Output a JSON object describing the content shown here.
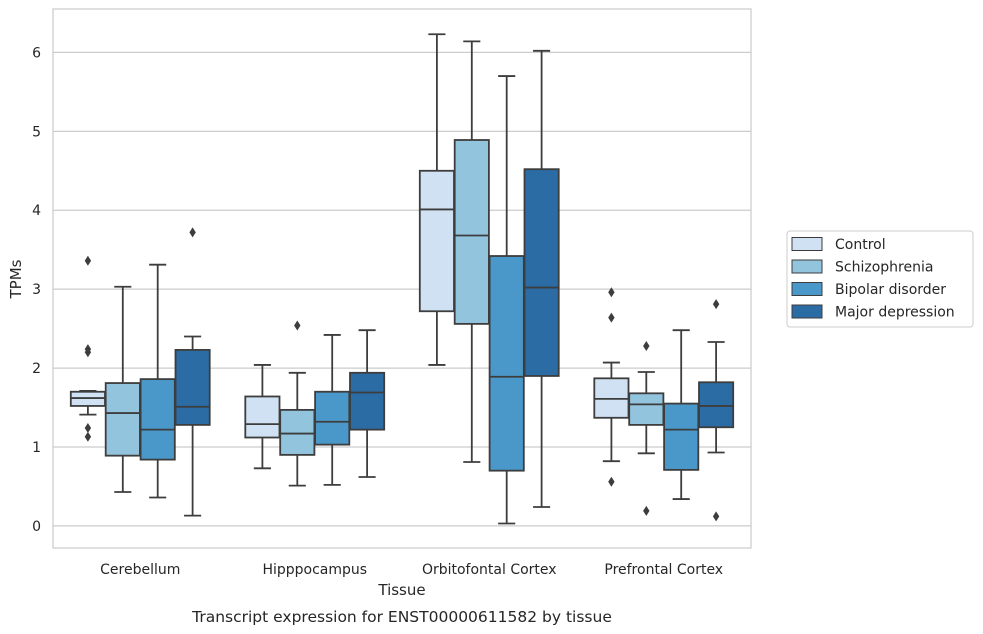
{
  "chart_data": {
    "type": "box",
    "title": "",
    "caption": "Transcript expression for ENST00000611582 by tissue",
    "xlabel": "Tissue",
    "ylabel": "TPMs",
    "ylim": [
      -0.28,
      6.55
    ],
    "yticks": [
      0,
      1,
      2,
      3,
      4,
      5,
      6
    ],
    "grid": "horizontal",
    "legend_position": "right",
    "categories": [
      "Cerebellum",
      "Hipppocampus",
      "Orbitofontal Cortex",
      "Prefrontal Cortex"
    ],
    "series": [
      {
        "name": "Control",
        "color": "#cfe1f2",
        "boxes": [
          {
            "whislo": 1.41,
            "q1": 1.52,
            "med": 1.62,
            "q3": 1.7,
            "whishi": 1.71,
            "fliers": [
              3.36,
              2.24,
              2.2,
              1.24,
              1.13
            ]
          },
          {
            "whislo": 0.73,
            "q1": 1.12,
            "med": 1.29,
            "q3": 1.64,
            "whishi": 2.04,
            "fliers": []
          },
          {
            "whislo": 2.04,
            "q1": 2.72,
            "med": 4.01,
            "q3": 4.5,
            "whishi": 6.23,
            "fliers": []
          },
          {
            "whislo": 0.82,
            "q1": 1.37,
            "med": 1.61,
            "q3": 1.87,
            "whishi": 2.07,
            "fliers": [
              2.96,
              2.64,
              0.56
            ]
          }
        ]
      },
      {
        "name": "Schizophrenia",
        "color": "#93c4de",
        "boxes": [
          {
            "whislo": 0.43,
            "q1": 0.89,
            "med": 1.43,
            "q3": 1.81,
            "whishi": 3.03,
            "fliers": []
          },
          {
            "whislo": 0.51,
            "q1": 0.9,
            "med": 1.17,
            "q3": 1.47,
            "whishi": 1.94,
            "fliers": [
              2.54
            ]
          },
          {
            "whislo": 0.81,
            "q1": 2.56,
            "med": 3.68,
            "q3": 4.89,
            "whishi": 6.14,
            "fliers": []
          },
          {
            "whislo": 0.92,
            "q1": 1.28,
            "med": 1.54,
            "q3": 1.68,
            "whishi": 1.95,
            "fliers": [
              2.28,
              0.19
            ]
          }
        ]
      },
      {
        "name": "Bipolar disorder",
        "color": "#4a98c9",
        "boxes": [
          {
            "whislo": 0.36,
            "q1": 0.84,
            "med": 1.22,
            "q3": 1.86,
            "whishi": 3.31,
            "fliers": []
          },
          {
            "whislo": 0.52,
            "q1": 1.03,
            "med": 1.32,
            "q3": 1.7,
            "whishi": 2.42,
            "fliers": []
          },
          {
            "whislo": 0.03,
            "q1": 0.7,
            "med": 1.89,
            "q3": 3.42,
            "whishi": 5.7,
            "fliers": []
          },
          {
            "whislo": 0.34,
            "q1": 0.71,
            "med": 1.22,
            "q3": 1.55,
            "whishi": 2.48,
            "fliers": []
          }
        ]
      },
      {
        "name": "Major depression",
        "color": "#2b6ca5",
        "boxes": [
          {
            "whislo": 0.13,
            "q1": 1.28,
            "med": 1.51,
            "q3": 2.23,
            "whishi": 2.4,
            "fliers": [
              3.72
            ]
          },
          {
            "whislo": 0.62,
            "q1": 1.22,
            "med": 1.69,
            "q3": 1.94,
            "whishi": 2.48,
            "fliers": []
          },
          {
            "whislo": 0.24,
            "q1": 1.9,
            "med": 3.02,
            "q3": 4.52,
            "whishi": 6.02,
            "fliers": []
          },
          {
            "whislo": 0.93,
            "q1": 1.25,
            "med": 1.52,
            "q3": 1.82,
            "whishi": 2.33,
            "fliers": [
              2.81,
              0.12
            ]
          }
        ]
      }
    ]
  }
}
